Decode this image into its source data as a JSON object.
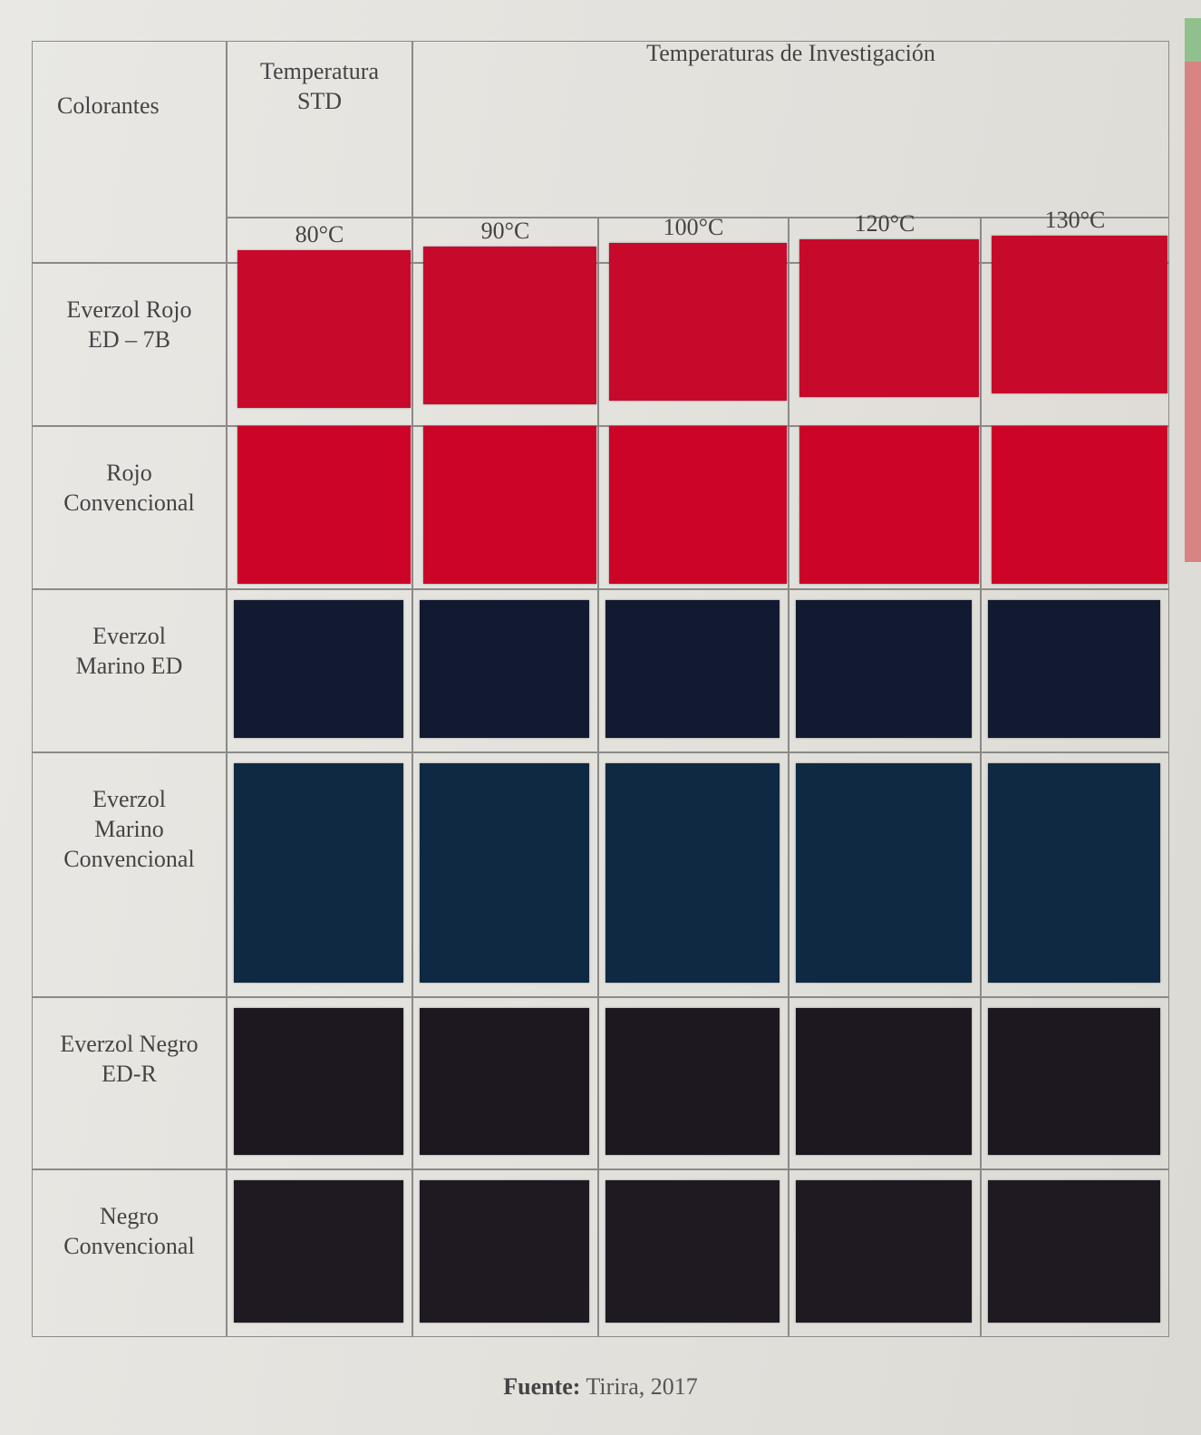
{
  "table": {
    "header": {
      "colorants": "Colorantes",
      "standard": "Temperatura\nSTD",
      "investigation": "Temperaturas de Investigación",
      "temperatures": [
        "80°C",
        "90°C",
        "100°C",
        "120°C",
        "130°C"
      ]
    },
    "rows": [
      "Everzol Rojo\nED – 7B",
      "Rojo\nConvencional",
      "Everzol\nMarino ED",
      "Everzol\nMarino\nConvencional",
      "Everzol Negro\nED-R",
      "Negro\nConvencional"
    ]
  },
  "source": {
    "label": "Fuente:",
    "text": "Tirira, 2017"
  }
}
